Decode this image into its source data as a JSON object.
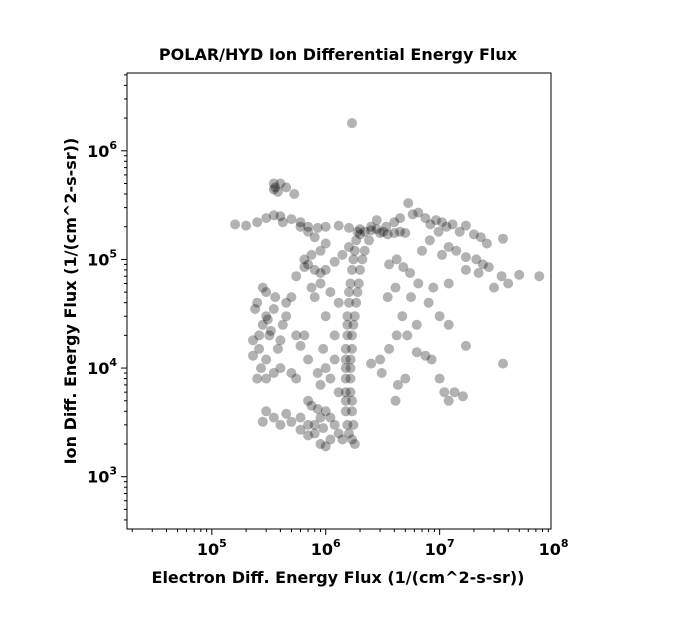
{
  "chart_data": {
    "type": "scatter",
    "title": "POLAR/HYD  Ion Differential Energy Flux",
    "xlabel": "Electron Diff. Energy Flux (1/(cm^2-s-sr))",
    "ylabel": "Ion Diff. Energy Flux (1/(cm^2-s-sr))",
    "x_scale": "log",
    "y_scale": "log",
    "xlim": [
      18000,
      95000000
    ],
    "ylim": [
      330,
      5200000
    ],
    "x_major_ticks": [
      100000,
      1000000,
      10000000,
      100000000
    ],
    "x_tick_labels": [
      {
        "base": "10",
        "exp": "5"
      },
      {
        "base": "10",
        "exp": "6"
      },
      {
        "base": "10",
        "exp": "7"
      },
      {
        "base": "10",
        "exp": "8"
      }
    ],
    "y_major_ticks": [
      1000,
      10000,
      100000,
      1000000
    ],
    "y_tick_labels": [
      {
        "base": "10",
        "exp": "3"
      },
      {
        "base": "10",
        "exp": "4"
      },
      {
        "base": "10",
        "exp": "5"
      },
      {
        "base": "10",
        "exp": "6"
      }
    ],
    "grid": false,
    "marker_color": "#000000",
    "marker_opacity": 0.3,
    "series": [
      {
        "points": [
          [
            160000,
            210000
          ],
          [
            200000,
            205000
          ],
          [
            250000,
            220000
          ],
          [
            300000,
            240000
          ],
          [
            350000,
            255000
          ],
          [
            400000,
            250000
          ],
          [
            500000,
            235000
          ],
          [
            600000,
            220000
          ],
          [
            700000,
            200000
          ],
          [
            850000,
            195000
          ],
          [
            1000000,
            200000
          ],
          [
            1300000,
            205000
          ],
          [
            1600000,
            195000
          ],
          [
            2000000,
            190000
          ],
          [
            2500000,
            185000
          ],
          [
            3000000,
            175000
          ],
          [
            3500000,
            170000
          ],
          [
            4000000,
            175000
          ],
          [
            4500000,
            180000
          ],
          [
            5000000,
            175000
          ],
          [
            3400000,
            200000
          ],
          [
            4000000,
            220000
          ],
          [
            2800000,
            230000
          ],
          [
            4500000,
            240000
          ],
          [
            5300000,
            330000
          ],
          [
            5800000,
            260000
          ],
          [
            6500000,
            270000
          ],
          [
            7500000,
            240000
          ],
          [
            8300000,
            210000
          ],
          [
            9300000,
            230000
          ],
          [
            10500000,
            220000
          ],
          [
            11500000,
            200000
          ],
          [
            13000000,
            210000
          ],
          [
            15000000,
            180000
          ],
          [
            17000000,
            205000
          ],
          [
            20000000,
            170000
          ],
          [
            23000000,
            160000
          ],
          [
            26000000,
            140000
          ],
          [
            9800000,
            180000
          ],
          [
            8200000,
            150000
          ],
          [
            12000000,
            130000
          ],
          [
            7000000,
            120000
          ],
          [
            10500000,
            110000
          ],
          [
            14000000,
            120000
          ],
          [
            17000000,
            105000
          ],
          [
            21000000,
            100000
          ],
          [
            24000000,
            90000
          ],
          [
            27000000,
            85000
          ],
          [
            35000000,
            70000
          ],
          [
            50000000,
            72000
          ],
          [
            75000000,
            70000
          ],
          [
            40000000,
            60000
          ],
          [
            30000000,
            55000
          ],
          [
            22000000,
            75000
          ],
          [
            17000000,
            80000
          ],
          [
            12000000,
            60000
          ],
          [
            8800000,
            55000
          ],
          [
            6500000,
            60000
          ],
          [
            5500000,
            75000
          ],
          [
            4800000,
            85000
          ],
          [
            4200000,
            100000
          ],
          [
            3600000,
            90000
          ],
          [
            4100000,
            55000
          ],
          [
            5600000,
            45000
          ],
          [
            3500000,
            45000
          ],
          [
            4700000,
            30000
          ],
          [
            6300000,
            25000
          ],
          [
            10000000,
            30000
          ],
          [
            8000000,
            40000
          ],
          [
            12000000,
            25000
          ],
          [
            17000000,
            16000
          ],
          [
            5200000,
            20000
          ],
          [
            4200000,
            20000
          ],
          [
            3600000,
            15000
          ],
          [
            3000000,
            12000
          ],
          [
            2500000,
            11000
          ],
          [
            3100000,
            9000
          ],
          [
            4300000,
            7000
          ],
          [
            4100000,
            5000
          ],
          [
            5000000,
            8000
          ],
          [
            6300000,
            14000
          ],
          [
            7500000,
            13000
          ],
          [
            8500000,
            12000
          ],
          [
            10000000,
            8000
          ],
          [
            11000000,
            6000
          ],
          [
            12000000,
            5000
          ],
          [
            13500000,
            6000
          ],
          [
            16000000,
            5500
          ],
          [
            36000000,
            11000
          ],
          [
            36000000,
            155000
          ],
          [
            1700000,
            1800000
          ],
          [
            350000,
            500000
          ],
          [
            400000,
            500000
          ],
          [
            450000,
            460000
          ],
          [
            350000,
            440000
          ],
          [
            380000,
            420000
          ],
          [
            360000,
            460000
          ],
          [
            530000,
            400000
          ],
          [
            420000,
            220000
          ],
          [
            1900000,
            180000
          ],
          [
            1850000,
            150000
          ],
          [
            1800000,
            120000
          ],
          [
            1750000,
            100000
          ],
          [
            1700000,
            80000
          ],
          [
            1650000,
            60000
          ],
          [
            1600000,
            50000
          ],
          [
            1600000,
            40000
          ],
          [
            1550000,
            30000
          ],
          [
            1550000,
            25000
          ],
          [
            1550000,
            20000
          ],
          [
            1500000,
            15000
          ],
          [
            1500000,
            12000
          ],
          [
            1500000,
            10000
          ],
          [
            1500000,
            8000
          ],
          [
            1500000,
            6000
          ],
          [
            1500000,
            5000
          ],
          [
            1500000,
            4000
          ],
          [
            1550000,
            3000
          ],
          [
            1600000,
            2500
          ],
          [
            1700000,
            2200
          ],
          [
            1800000,
            2000
          ],
          [
            1400000,
            2200
          ],
          [
            1300000,
            2500
          ],
          [
            1200000,
            3000
          ],
          [
            1100000,
            3500
          ],
          [
            1000000,
            4000
          ],
          [
            900000,
            3500
          ],
          [
            800000,
            3000
          ],
          [
            700000,
            3000
          ],
          [
            600000,
            3500
          ],
          [
            500000,
            3200
          ],
          [
            450000,
            3800
          ],
          [
            400000,
            3000
          ],
          [
            350000,
            3500
          ],
          [
            300000,
            4000
          ],
          [
            280000,
            3200
          ],
          [
            800000,
            2500
          ],
          [
            900000,
            2000
          ],
          [
            1000000,
            1900
          ],
          [
            1100000,
            2200
          ],
          [
            700000,
            2400
          ],
          [
            600000,
            2700
          ],
          [
            950000,
            2800
          ],
          [
            850000,
            4200
          ],
          [
            750000,
            4500
          ],
          [
            700000,
            5000
          ],
          [
            2000000,
            170000
          ],
          [
            2200000,
            180000
          ],
          [
            2500000,
            200000
          ],
          [
            2800000,
            190000
          ],
          [
            3200000,
            180000
          ],
          [
            2400000,
            150000
          ],
          [
            2200000,
            120000
          ],
          [
            2100000,
            100000
          ],
          [
            2000000,
            80000
          ],
          [
            1950000,
            60000
          ],
          [
            1900000,
            50000
          ],
          [
            1850000,
            40000
          ],
          [
            1800000,
            30000
          ],
          [
            1750000,
            25000
          ],
          [
            1700000,
            20000
          ],
          [
            1700000,
            15000
          ],
          [
            1650000,
            12000
          ],
          [
            1650000,
            10000
          ],
          [
            1650000,
            8000
          ],
          [
            1650000,
            6000
          ],
          [
            1700000,
            5000
          ],
          [
            1700000,
            4000
          ],
          [
            1750000,
            3000
          ],
          [
            700000,
            90000
          ],
          [
            800000,
            80000
          ],
          [
            900000,
            75000
          ],
          [
            1000000,
            80000
          ],
          [
            1200000,
            95000
          ],
          [
            1400000,
            110000
          ],
          [
            1600000,
            130000
          ],
          [
            650000,
            100000
          ],
          [
            750000,
            110000
          ],
          [
            900000,
            120000
          ],
          [
            1000000,
            140000
          ],
          [
            800000,
            160000
          ],
          [
            700000,
            180000
          ],
          [
            600000,
            200000
          ],
          [
            650000,
            85000
          ],
          [
            550000,
            70000
          ],
          [
            250000,
            40000
          ],
          [
            300000,
            30000
          ],
          [
            350000,
            35000
          ],
          [
            280000,
            25000
          ],
          [
            320000,
            20000
          ],
          [
            260000,
            15000
          ],
          [
            300000,
            12000
          ],
          [
            270000,
            10000
          ],
          [
            250000,
            8000
          ],
          [
            300000,
            8000
          ],
          [
            350000,
            9000
          ],
          [
            400000,
            10000
          ],
          [
            380000,
            15000
          ],
          [
            420000,
            25000
          ],
          [
            450000,
            30000
          ],
          [
            360000,
            45000
          ],
          [
            300000,
            50000
          ],
          [
            280000,
            55000
          ],
          [
            240000,
            35000
          ],
          [
            230000,
            18000
          ],
          [
            230000,
            13000
          ],
          [
            260000,
            20000
          ],
          [
            310000,
            28000
          ],
          [
            330000,
            22000
          ],
          [
            400000,
            18000
          ],
          [
            450000,
            40000
          ],
          [
            500000,
            45000
          ],
          [
            550000,
            20000
          ],
          [
            600000,
            16000
          ],
          [
            650000,
            20000
          ],
          [
            700000,
            12000
          ],
          [
            500000,
            9000
          ],
          [
            550000,
            8000
          ],
          [
            900000,
            60000
          ],
          [
            1100000,
            50000
          ],
          [
            800000,
            45000
          ],
          [
            750000,
            55000
          ],
          [
            1300000,
            40000
          ],
          [
            1000000,
            30000
          ],
          [
            1200000,
            20000
          ],
          [
            950000,
            15000
          ],
          [
            850000,
            9000
          ],
          [
            1100000,
            8000
          ],
          [
            1300000,
            6000
          ],
          [
            1200000,
            12000
          ],
          [
            900000,
            7000
          ],
          [
            1000000,
            10000
          ]
        ]
      }
    ]
  }
}
